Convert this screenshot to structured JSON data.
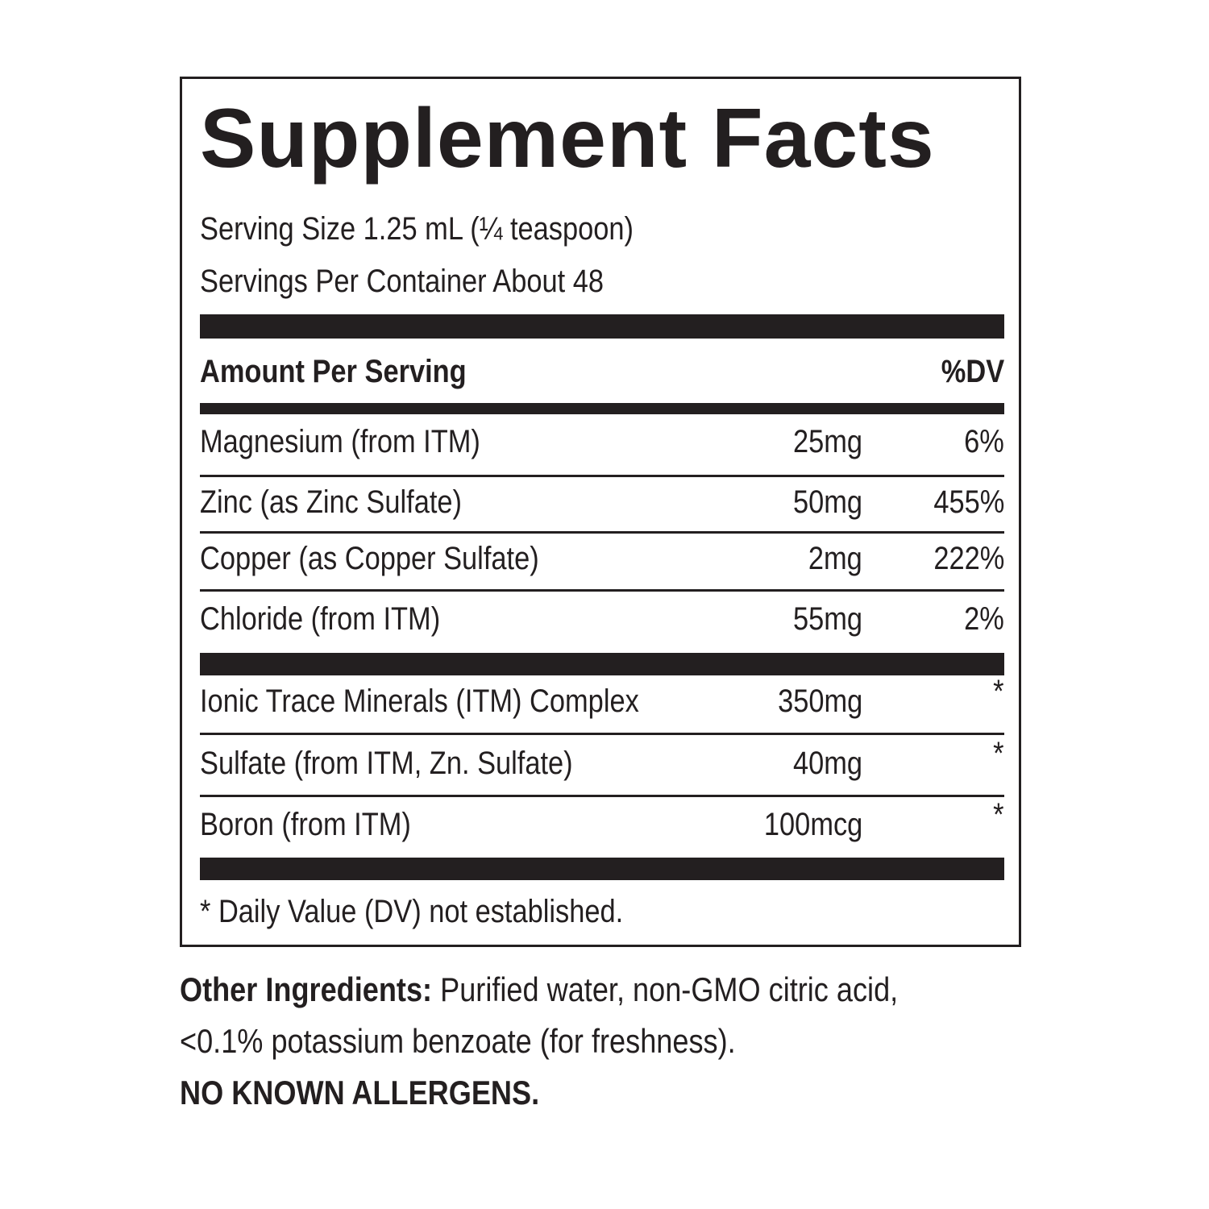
{
  "label": {
    "title": "Supplement Facts",
    "serving_size": "Serving Size 1.25 mL (¼ teaspoon)",
    "servings_per_container": "Servings Per Container About 48",
    "amount_header": "Amount Per Serving",
    "dv_header": "%DV",
    "nutrients": [
      {
        "name": "Magnesium (from ITM)",
        "amount": "25mg",
        "dv": "6%"
      },
      {
        "name": "Zinc (as Zinc Sulfate)",
        "amount": "50mg",
        "dv": "455%"
      },
      {
        "name": "Copper (as Copper Sulfate)",
        "amount": "2mg",
        "dv": "222%"
      },
      {
        "name": "Chloride (from ITM)",
        "amount": "55mg",
        "dv": "2%"
      }
    ],
    "other_nutrients": [
      {
        "name": "Ionic Trace Minerals (ITM) Complex",
        "amount": "350mg",
        "dv": "*"
      },
      {
        "name": "Sulfate (from ITM, Zn. Sulfate)",
        "amount": "40mg",
        "dv": "*"
      },
      {
        "name": "Boron (from ITM)",
        "amount": "100mcg",
        "dv": "*"
      }
    ],
    "footnote": "* Daily Value (DV) not established."
  },
  "other_ingredients": {
    "heading": "Other Ingredients:",
    "line1": " Purified water, non-GMO citric acid,",
    "line2": "<0.1% potassium benzoate (for freshness).",
    "allergens": "NO KNOWN ALLERGENS."
  }
}
